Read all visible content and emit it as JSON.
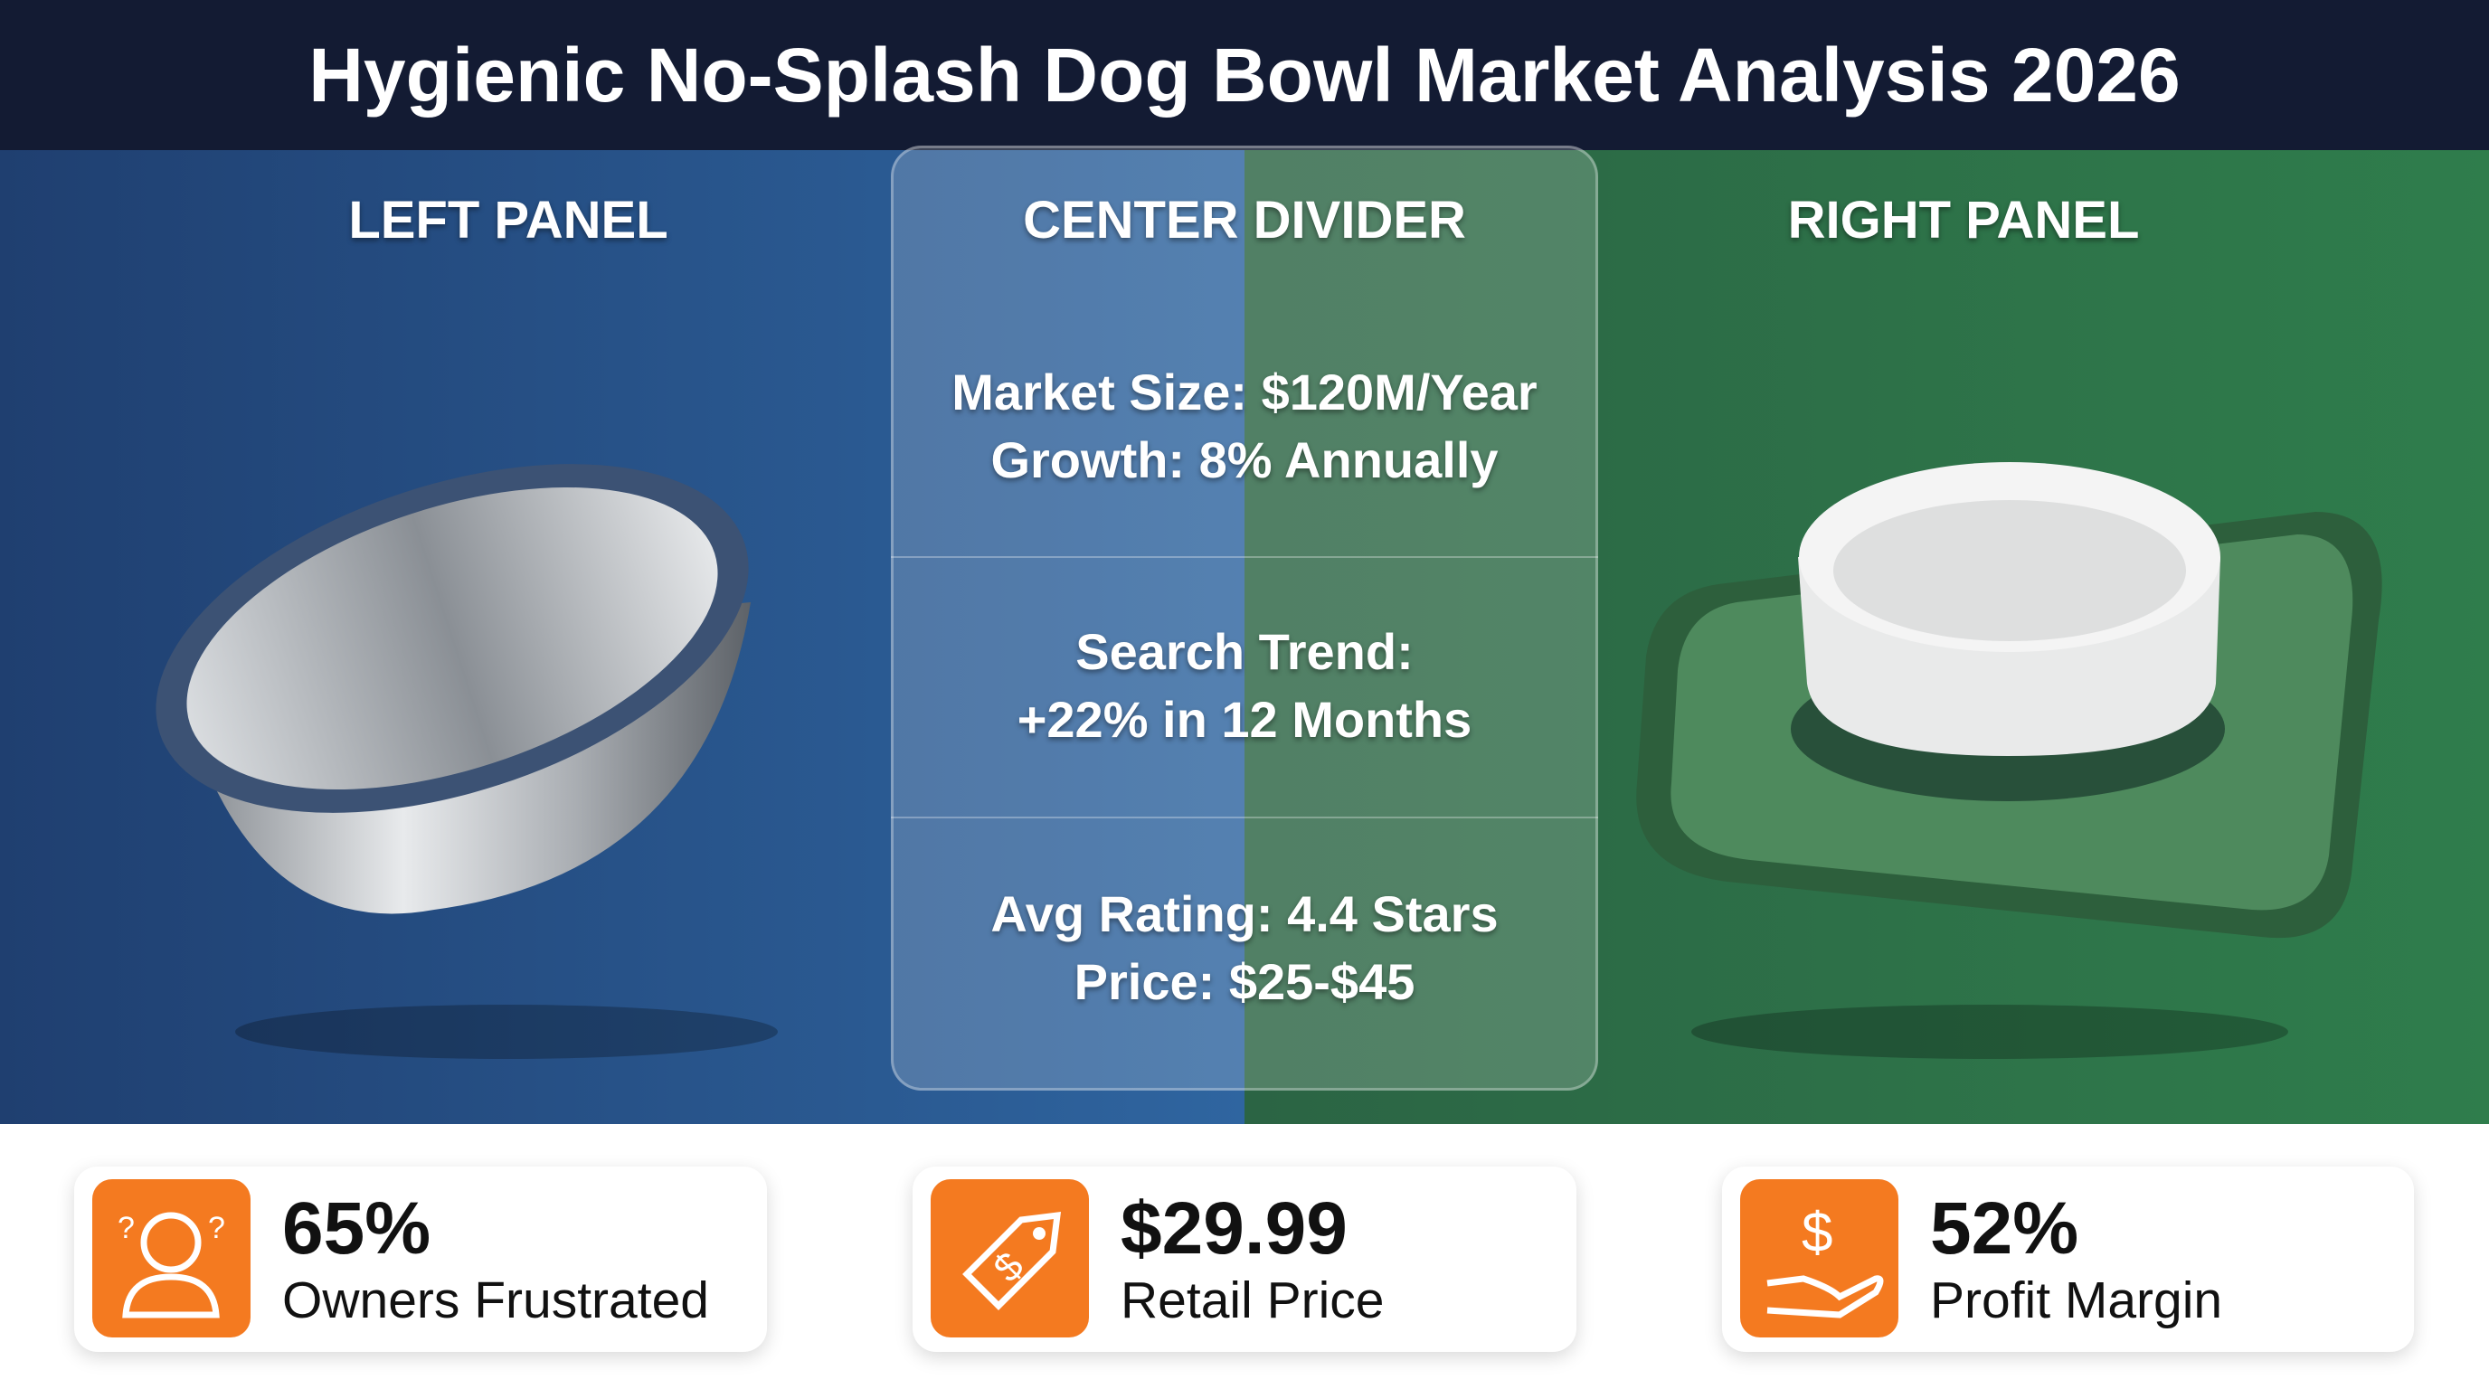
{
  "header": {
    "title": "Hygienic No-Splash Dog Bowl Market Analysis 2026"
  },
  "panels": {
    "left": "LEFT PANEL",
    "center": "CENTER DIVIDER",
    "right": "RIGHT PANEL"
  },
  "center_blocks": [
    [
      "Market Size: $120M/Year",
      "Growth: 8% Annually"
    ],
    [
      "Search Trend:",
      "+22% in 12 Months"
    ],
    [
      "Avg Rating: 4.4 Stars",
      "Price: $25-$45"
    ]
  ],
  "stats": [
    {
      "value": "65%",
      "label": "Owners Frustrated"
    },
    {
      "value": "$29.99",
      "label": "Retail Price"
    },
    {
      "value": "52%",
      "label": "Profit Margin"
    }
  ]
}
